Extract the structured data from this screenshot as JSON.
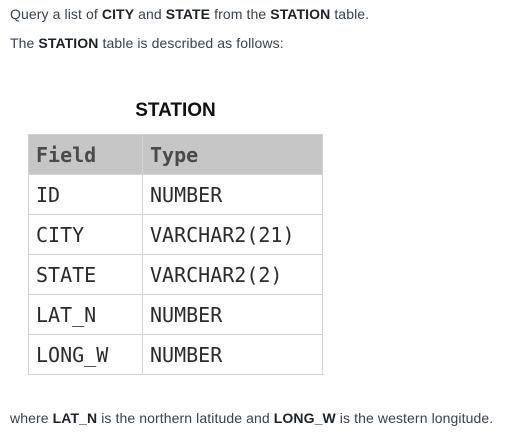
{
  "intro": {
    "line1": {
      "t1": "Query a list of ",
      "b1": "CITY",
      "t2": " and ",
      "b2": "STATE",
      "t3": " from the ",
      "b3": "STATION",
      "t4": " table."
    },
    "line2": {
      "t1": "The ",
      "b1": "STATION",
      "t2": " table is described as follows:"
    }
  },
  "table": {
    "title": "STATION",
    "headers": [
      "Field",
      "Type"
    ],
    "rows": [
      [
        "ID",
        "NUMBER"
      ],
      [
        "CITY",
        "VARCHAR2(21)"
      ],
      [
        "STATE",
        "VARCHAR2(2)"
      ],
      [
        "LAT_N",
        "NUMBER"
      ],
      [
        "LONG_W",
        "NUMBER"
      ]
    ]
  },
  "footer": {
    "t1": "where ",
    "b1": "LAT_N",
    "t2": " is the northern latitude and ",
    "b2": "LONG_W",
    "t3": " is the western longitude."
  }
}
